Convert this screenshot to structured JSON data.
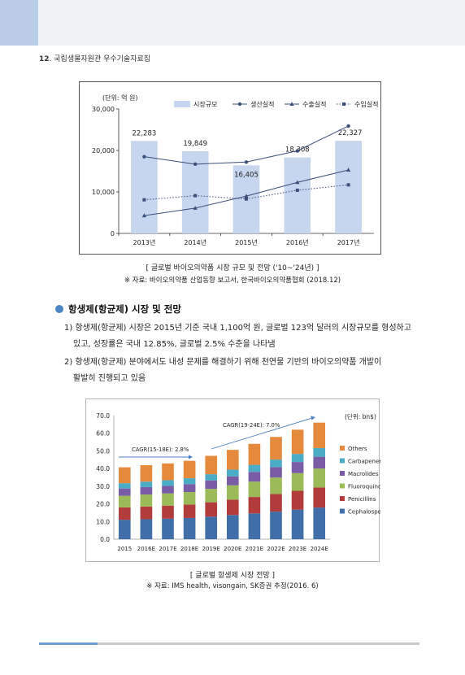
{
  "header": {
    "page_number": "12",
    "title": "국립생물자원관 우수기술자료집"
  },
  "chart1": {
    "caption": "[ 글로벌 바이오의약품 시장 규모 및 전망 ('10~'24년) ]",
    "source": "※ 자료: 바이오의약품 산업동향 보고서, 한국바이오의약품협회 (2018.12)"
  },
  "section": {
    "title": "항생제(항균제) 시장 및 전망",
    "p1_line1": "1) 항생제(항균제) 시장은 2015년 기준 국내 1,100억 원, 글로벌 123억 달러의 시장규모를 형성하고",
    "p1_line2": "있고, 성장률은 국내 12.85%, 글로벌 2.5% 수준을 나타냄",
    "p2_line1": "2) 항생제(항균제) 분야에서도 내성 문제를 해결하기 위해 천연물 기반의 바이오의약품 개발이",
    "p2_line2": "활발히 진행되고 있음"
  },
  "chart2": {
    "caption": "[ 글로벌 항생제 시장 전망 ]",
    "source": "※ 자료: IMS health, visongain, SK증권 추정(2016. 6)"
  },
  "chart_data": [
    {
      "type": "bar",
      "unit_label": "(단위: 억 원)",
      "categories": [
        "2013년",
        "2014년",
        "2015년",
        "2016년",
        "2017년"
      ],
      "ylim": [
        0,
        30000
      ],
      "yticks": [
        "0",
        "10,000",
        "20,000",
        "30,000"
      ],
      "grid": false,
      "legend_position": "top",
      "series": [
        {
          "name": "시장규모",
          "kind": "bar",
          "color": "#c5d6ee",
          "values": [
            22283,
            19849,
            16405,
            18308,
            22327
          ],
          "labels": [
            "22,283",
            "19,849",
            "16,405",
            "18,308",
            "22,327"
          ]
        },
        {
          "name": "생산실적",
          "kind": "line",
          "marker": "circle",
          "color": "#3b4f7a",
          "values": [
            18500,
            16700,
            17200,
            19900,
            25900
          ]
        },
        {
          "name": "수출실적",
          "kind": "line",
          "marker": "triangle",
          "color": "#3b4f7a",
          "values": [
            4300,
            6100,
            9000,
            12300,
            15300
          ]
        },
        {
          "name": "수입실적",
          "kind": "dotted-line",
          "marker": "square",
          "color": "#3b4f7a",
          "values": [
            8100,
            9100,
            8300,
            10400,
            11700
          ]
        }
      ]
    },
    {
      "type": "bar",
      "stacked": true,
      "unit_label": "(단위: bn$)",
      "categories": [
        "2015",
        "2016E",
        "2017E",
        "2018E",
        "2019E",
        "2020E",
        "2021E",
        "2022E",
        "2023E",
        "2024E"
      ],
      "ylim": [
        0,
        70
      ],
      "yticks": [
        "0.0",
        "10.0",
        "20.0",
        "30.0",
        "40.0",
        "50.0",
        "60.0",
        "70.0"
      ],
      "grid": false,
      "legend_position": "right",
      "annotations": [
        "CAGR(15-18E): 2.8%",
        "CAGR(19-24E): 7.0%"
      ],
      "series": [
        {
          "name": "Cephalosporins",
          "color": "#3f6ea8",
          "values": [
            11.0,
            11.3,
            11.6,
            12.0,
            12.8,
            13.7,
            14.6,
            15.6,
            16.7,
            17.9
          ]
        },
        {
          "name": "Penicillins",
          "color": "#b23b3b",
          "values": [
            7.0,
            7.2,
            7.4,
            7.6,
            8.1,
            8.7,
            9.3,
            10.0,
            10.7,
            11.4
          ]
        },
        {
          "name": "Fluoroquinolones",
          "color": "#9bbb59",
          "values": [
            6.6,
            6.8,
            6.9,
            7.1,
            7.6,
            8.1,
            8.7,
            9.3,
            10.0,
            10.7
          ]
        },
        {
          "name": "Macrolides",
          "color": "#7a5ca6",
          "values": [
            4.1,
            4.2,
            4.3,
            4.5,
            4.8,
            5.1,
            5.5,
            5.9,
            6.3,
            6.7
          ]
        },
        {
          "name": "Carbapenems",
          "color": "#4bacc6",
          "values": [
            3.0,
            3.1,
            3.2,
            3.3,
            3.5,
            3.8,
            4.0,
            4.3,
            4.6,
            4.9
          ]
        },
        {
          "name": "Others",
          "color": "#e58a3c",
          "values": [
            9.0,
            9.3,
            9.5,
            9.9,
            10.4,
            11.2,
            11.9,
            12.8,
            13.7,
            14.4
          ]
        }
      ]
    }
  ]
}
